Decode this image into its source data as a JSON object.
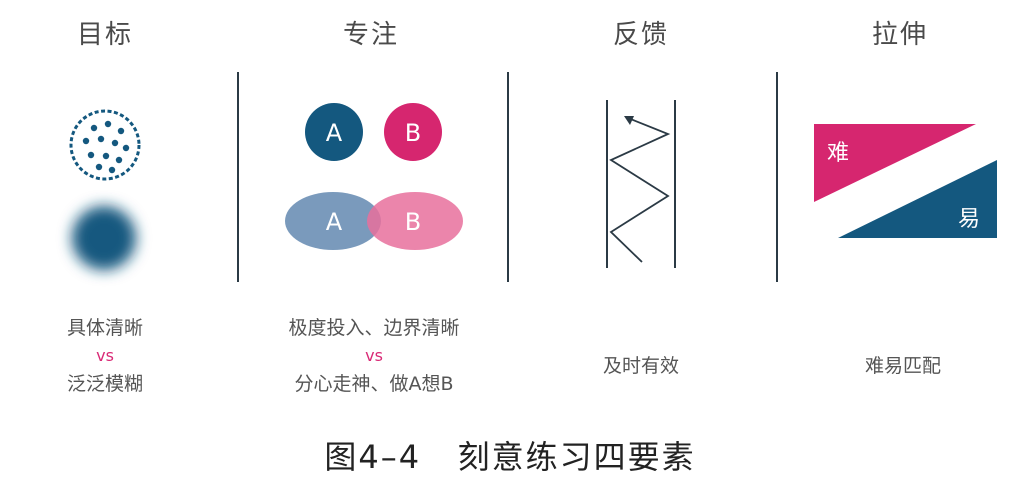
{
  "columns": [
    {
      "title": "目标",
      "caption_top": "具体清晰",
      "vs": "vs",
      "caption_bottom": "泛泛模糊"
    },
    {
      "title": "专注",
      "caption_top": "极度投入、边界清晰",
      "vs": "vs",
      "caption_bottom": "分心走神、做A想B"
    },
    {
      "title": "反馈",
      "caption": "及时有效"
    },
    {
      "title": "拉伸",
      "caption": "难易匹配"
    }
  ],
  "focus_diagram": {
    "circle_a": "A",
    "circle_b": "B",
    "ellipse_a": "A",
    "ellipse_b": "B"
  },
  "stretch_diagram": {
    "hard_label": "难",
    "easy_label": "易"
  },
  "figure_title": "图4–4   刻意练习四要素",
  "colors": {
    "navy": "#14587f",
    "magenta": "#d6266f",
    "pink": "#e8709c",
    "light_navy": "#6b8fb5",
    "divider": "#2b3a45"
  }
}
